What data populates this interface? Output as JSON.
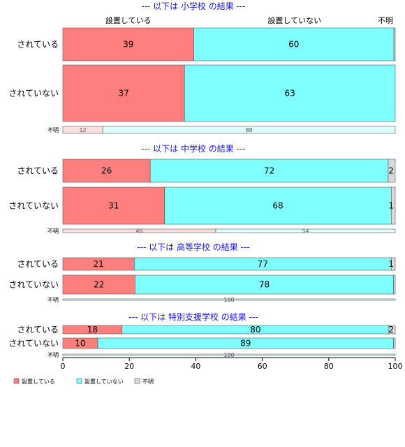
{
  "chart_data": {
    "type": "bar",
    "orientation": "horizontal",
    "stacked": "percent",
    "column_headers": [
      "設置している",
      "設置していない",
      "不明"
    ],
    "legend": {
      "placement": "bottom-left",
      "entries": [
        "設置している",
        "設置していない",
        "不明"
      ]
    },
    "colors": {
      "yes": "#ff7f7f",
      "no": "#7fffff",
      "unknown": "#d9d9d9",
      "panel_title": "#1515e6"
    },
    "x_axis": {
      "min": 0,
      "max": 100,
      "ticks": [
        "0",
        "20",
        "40",
        "60",
        "80",
        "100"
      ]
    },
    "panels": [
      {
        "title": "--- 以下は 小学校 の結果 ---",
        "rows": [
          {
            "label": "されている",
            "values": [
              39.4,
              60.2,
              0.4
            ],
            "labels": [
              "39",
              "60",
              ""
            ]
          },
          {
            "label": "されていない",
            "values": [
              36.6,
              63.4,
              0
            ],
            "labels": [
              "37",
              "63",
              ""
            ]
          },
          {
            "label": "不明",
            "values": [
              12,
              88,
              0
            ],
            "labels": [
              "12",
              "88",
              ""
            ]
          }
        ]
      },
      {
        "title": "--- 以下は 中学校 の結果 ---",
        "rows": [
          {
            "label": "されている",
            "values": [
              26.3,
              71.6,
              2.1
            ],
            "labels": [
              "26",
              "72",
              "2"
            ]
          },
          {
            "label": "されていない",
            "values": [
              30.6,
              68.2,
              1.2
            ],
            "labels": [
              "31",
              "68",
              "1"
            ]
          },
          {
            "label": "不明",
            "values": [
              46,
              54,
              0
            ],
            "labels": [
              "46",
              "54",
              ""
            ]
          }
        ]
      },
      {
        "title": "--- 以下は 高等学校 の結果 ---",
        "rows": [
          {
            "label": "されている",
            "values": [
              21.5,
              77.3,
              1.2
            ],
            "labels": [
              "21",
              "77",
              "1"
            ]
          },
          {
            "label": "されていない",
            "values": [
              21.7,
              77.8,
              0.5
            ],
            "labels": [
              "22",
              "78",
              ""
            ]
          },
          {
            "label": "不明",
            "values": [
              0,
              100,
              0
            ],
            "labels": [
              "",
              "100",
              ""
            ]
          }
        ]
      },
      {
        "title": "--- 以下は 特別支援学校 の結果 ---",
        "rows": [
          {
            "label": "されている",
            "values": [
              17.8,
              80.3,
              1.9
            ],
            "labels": [
              "18",
              "80",
              "2"
            ]
          },
          {
            "label": "されていない",
            "values": [
              10.5,
              89.0,
              0.5
            ],
            "labels": [
              "10",
              "89",
              ""
            ]
          },
          {
            "label": "不明",
            "values": [
              0,
              100,
              0
            ],
            "labels": [
              "",
              "100",
              ""
            ]
          }
        ]
      }
    ]
  }
}
